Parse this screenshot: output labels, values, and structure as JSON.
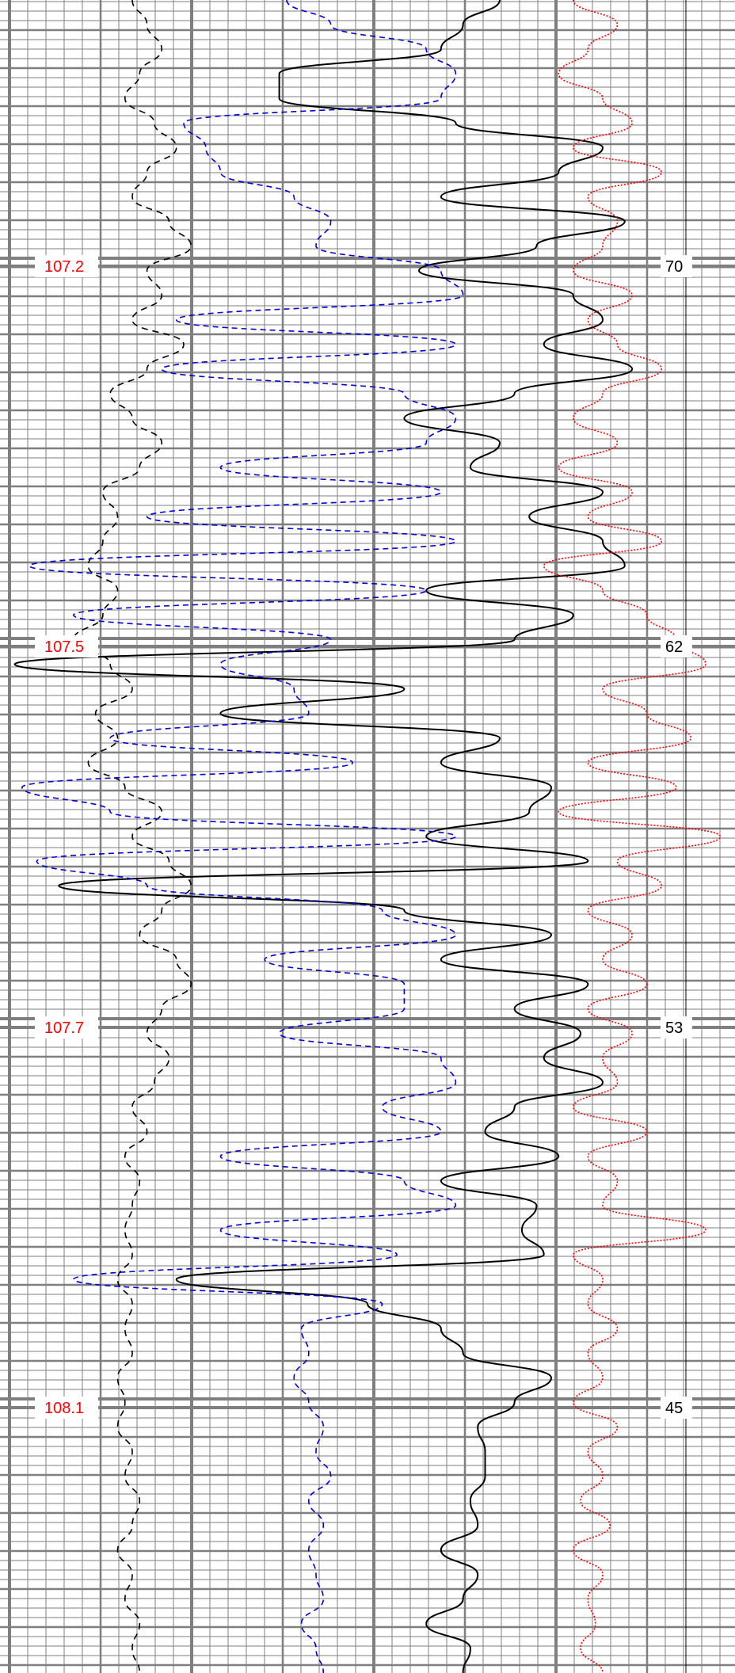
{
  "chart_data": {
    "type": "line",
    "title": "",
    "depth_ticks": [
      "107.2",
      "107.5",
      "107.7",
      "108.1"
    ],
    "scale_ticks": [
      "70",
      "62",
      "53",
      "45"
    ],
    "colors": {
      "depth_label": "#ff0000",
      "grid": "#7f7f7f",
      "series_solid_black": "#000000",
      "series_dashed_black": "#000000",
      "series_dashed_blue": "#0000e0",
      "series_dotted_red": "#ff0000"
    },
    "grid": true,
    "legend": "none",
    "series": [
      {
        "style": "solid-black",
        "values": [
          0.68,
          0.63,
          0.6,
          0.38,
          0.38,
          0.62,
          0.82,
          0.76,
          0.6,
          0.85,
          0.73,
          0.57,
          0.78,
          0.82,
          0.74,
          0.86,
          0.7,
          0.55,
          0.68,
          0.64,
          0.82,
          0.72,
          0.82,
          0.85,
          0.58,
          0.78,
          0.7,
          0.02,
          0.55,
          0.3,
          0.68,
          0.6,
          0.75,
          0.72,
          0.58,
          0.8,
          0.08,
          0.55,
          0.75,
          0.6,
          0.8,
          0.7,
          0.79,
          0.74,
          0.82,
          0.7,
          0.66,
          0.76,
          0.6,
          0.73,
          0.71,
          0.74,
          0.24,
          0.5,
          0.6,
          0.63,
          0.75,
          0.7,
          0.65,
          0.66,
          0.66,
          0.64,
          0.65,
          0.6,
          0.65,
          0.63,
          0.58,
          0.64,
          0.63
        ]
      },
      {
        "style": "dashed-black",
        "values": [
          0.18,
          0.2,
          0.22,
          0.19,
          0.17,
          0.21,
          0.24,
          0.2,
          0.18,
          0.23,
          0.26,
          0.2,
          0.22,
          0.18,
          0.25,
          0.2,
          0.15,
          0.18,
          0.22,
          0.19,
          0.14,
          0.16,
          0.14,
          0.12,
          0.16,
          0.14,
          0.1,
          0.15,
          0.18,
          0.13,
          0.16,
          0.12,
          0.17,
          0.22,
          0.18,
          0.23,
          0.26,
          0.22,
          0.19,
          0.24,
          0.26,
          0.22,
          0.2,
          0.23,
          0.21,
          0.18,
          0.2,
          0.17,
          0.19,
          0.18,
          0.17,
          0.18,
          0.16,
          0.18,
          0.17,
          0.18,
          0.16,
          0.17,
          0.16,
          0.18,
          0.17,
          0.19,
          0.18,
          0.16,
          0.18,
          0.17,
          0.19,
          0.18,
          0.19
        ]
      },
      {
        "style": "dashed-blue",
        "values": [
          0.39,
          0.45,
          0.58,
          0.62,
          0.6,
          0.25,
          0.28,
          0.3,
          0.4,
          0.45,
          0.43,
          0.6,
          0.63,
          0.24,
          0.62,
          0.22,
          0.55,
          0.62,
          0.58,
          0.3,
          0.6,
          0.2,
          0.62,
          0.04,
          0.58,
          0.1,
          0.45,
          0.3,
          0.4,
          0.42,
          0.15,
          0.48,
          0.03,
          0.15,
          0.62,
          0.05,
          0.2,
          0.52,
          0.62,
          0.36,
          0.55,
          0.55,
          0.38,
          0.6,
          0.62,
          0.52,
          0.6,
          0.3,
          0.55,
          0.62,
          0.3,
          0.54,
          0.1,
          0.52,
          0.41,
          0.42,
          0.4,
          0.42,
          0.44,
          0.43,
          0.45,
          0.42,
          0.44,
          0.42,
          0.43,
          0.44,
          0.41,
          0.43,
          0.44
        ]
      },
      {
        "style": "dotted-red",
        "values": [
          0.78,
          0.84,
          0.8,
          0.76,
          0.82,
          0.86,
          0.78,
          0.9,
          0.8,
          0.84,
          0.82,
          0.78,
          0.86,
          0.8,
          0.84,
          0.9,
          0.82,
          0.78,
          0.84,
          0.76,
          0.86,
          0.8,
          0.9,
          0.74,
          0.82,
          0.88,
          0.92,
          0.96,
          0.82,
          0.88,
          0.94,
          0.8,
          0.92,
          0.76,
          0.98,
          0.84,
          0.9,
          0.8,
          0.86,
          0.82,
          0.88,
          0.8,
          0.86,
          0.82,
          0.84,
          0.78,
          0.88,
          0.8,
          0.84,
          0.82,
          0.96,
          0.78,
          0.82,
          0.8,
          0.84,
          0.8,
          0.82,
          0.78,
          0.84,
          0.8,
          0.82,
          0.79,
          0.83,
          0.78,
          0.82,
          0.8,
          0.81,
          0.79,
          0.82
        ]
      }
    ]
  }
}
